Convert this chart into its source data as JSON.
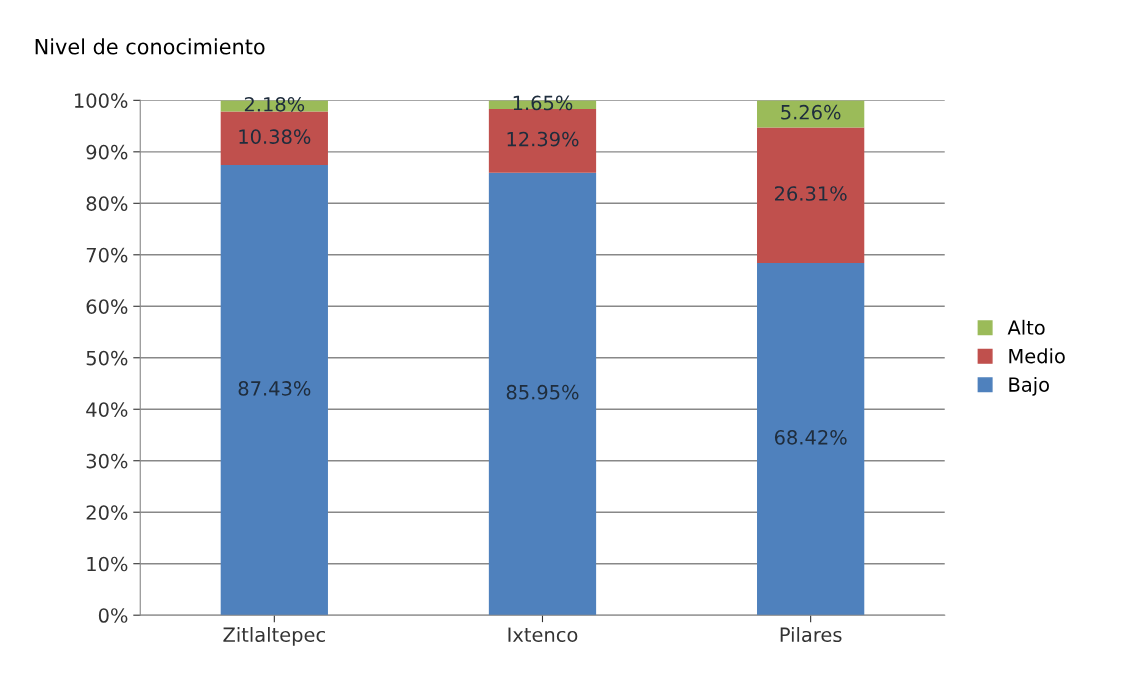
{
  "chart_data": {
    "type": "bar",
    "title": "Nivel de conocimiento",
    "stacked": true,
    "categories": [
      "Zitlaltepec",
      "Ixtenco",
      "Pilares"
    ],
    "series": [
      {
        "name": "Bajo",
        "color": "#4f81bd",
        "values": [
          87.43,
          85.95,
          68.42
        ],
        "value_labels": [
          "87.43%",
          "85.95%",
          "68.42%"
        ]
      },
      {
        "name": "Medio",
        "color": "#c0504d",
        "values": [
          10.38,
          12.39,
          26.31
        ],
        "value_labels": [
          "10.38%",
          "12.39%",
          "26.31%"
        ]
      },
      {
        "name": "Alto",
        "color": "#9bbb59",
        "values": [
          2.18,
          1.65,
          5.26
        ],
        "value_labels": [
          "2.18%",
          "1.65%",
          "5.26%"
        ]
      }
    ],
    "ylim": [
      0,
      100
    ],
    "yticks": [
      {
        "value": 0,
        "label": "0%"
      },
      {
        "value": 10,
        "label": "10%"
      },
      {
        "value": 20,
        "label": "20%"
      },
      {
        "value": 30,
        "label": "30%"
      },
      {
        "value": 40,
        "label": "40%"
      },
      {
        "value": 50,
        "label": "50%"
      },
      {
        "value": 60,
        "label": "60%"
      },
      {
        "value": 70,
        "label": "70%"
      },
      {
        "value": 80,
        "label": "80%"
      },
      {
        "value": 90,
        "label": "90%"
      },
      {
        "value": 100,
        "label": "100%"
      }
    ],
    "grid": "y",
    "legend": "right"
  }
}
